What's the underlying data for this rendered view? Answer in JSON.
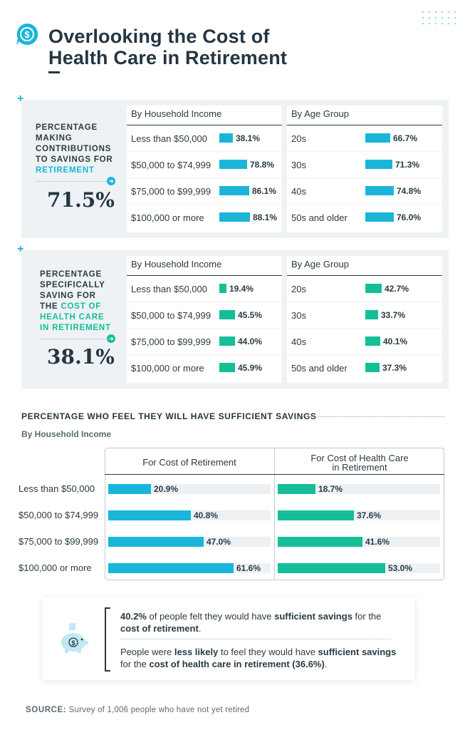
{
  "header": {
    "title_line1": "Overlooking the Cost of",
    "title_line2": "Health Care in Retirement",
    "icon": "dollar-chat-icon"
  },
  "colors": {
    "blue": "#19b6d9",
    "green": "#14be98",
    "navy": "#243642",
    "panel_bg": "#eef2f4",
    "track": "#eef1f3"
  },
  "panel1": {
    "label_lines": [
      "PERCENTAGE",
      "MAKING",
      "CONTRIBUTIONS",
      "TO SAVINGS FOR"
    ],
    "label_highlight": [
      "RETIREMENT"
    ],
    "big_value": "71.5%"
  },
  "panel2": {
    "label_lines": [
      "PERCENTAGE",
      "SPECIFICALLY",
      "SAVING FOR"
    ],
    "label_mixed_prefix": "THE ",
    "label_highlight": [
      "COST OF",
      "HEALTH CARE",
      "IN RETIREMENT"
    ],
    "big_value": "38.1%"
  },
  "subtable_headers": {
    "income": "By Household Income",
    "age": "By Age Group"
  },
  "bottom_chart": {
    "title": "PERCENTAGE WHO FEEL THEY WILL HAVE SUFFICIENT SAVINGS",
    "subtitle": "By Household Income",
    "col1": "For Cost of Retirement",
    "col2_line1": "For Cost of Health Care",
    "col2_line2": "in Retirement"
  },
  "note": {
    "p1_b1": "40.2%",
    "p1_t1": " of people felt they would have ",
    "p1_b2": "sufficient savings",
    "p1_t2": " for the ",
    "p1_b3": "cost of retirement",
    "p1_t3": ".",
    "p2_t1": "People were ",
    "p2_b1": "less likely",
    "p2_t2": " to feel they would have ",
    "p2_b2": "sufficient savings",
    "p2_t3": " for the ",
    "p2_b3": "cost of health care in retirement (36.6%)",
    "p2_t4": "."
  },
  "source": {
    "label": "SOURCE:",
    "text": " Survey of 1,006 people who have not yet retired"
  },
  "chart_data": [
    {
      "type": "bar",
      "title": "Percentage making contributions to savings for retirement",
      "overall": 71.5,
      "groups": [
        {
          "header": "By Household Income",
          "categories": [
            "Less than $50,000",
            "$50,000 to $74,999",
            "$75,000 to $99,999",
            "$100,000 or more"
          ],
          "values": [
            38.1,
            78.8,
            86.1,
            88.1
          ],
          "labels": [
            "38.1%",
            "78.8%",
            "86.1%",
            "88.1%"
          ],
          "color": "#19b6d9"
        },
        {
          "header": "By Age Group",
          "categories": [
            "20s",
            "30s",
            "40s",
            "50s and older"
          ],
          "values": [
            66.7,
            71.3,
            74.8,
            76.0
          ],
          "labels": [
            "66.7%",
            "71.3%",
            "74.8%",
            "76.0%"
          ],
          "color": "#19b6d9"
        }
      ],
      "ylim": [
        0,
        100
      ]
    },
    {
      "type": "bar",
      "title": "Percentage specifically saving for the cost of health care in retirement",
      "overall": 38.1,
      "groups": [
        {
          "header": "By Household Income",
          "categories": [
            "Less than $50,000",
            "$50,000 to $74,999",
            "$75,000 to $99,999",
            "$100,000 or more"
          ],
          "values": [
            19.4,
            45.5,
            44.0,
            45.9
          ],
          "labels": [
            "19.4%",
            "45.5%",
            "44.0%",
            "45.9%"
          ],
          "color": "#14be98"
        },
        {
          "header": "By Age Group",
          "categories": [
            "20s",
            "30s",
            "40s",
            "50s and older"
          ],
          "values": [
            42.7,
            33.7,
            40.1,
            37.3
          ],
          "labels": [
            "42.7%",
            "33.7%",
            "40.1%",
            "37.3%"
          ],
          "color": "#14be98"
        }
      ],
      "ylim": [
        0,
        100
      ]
    },
    {
      "type": "bar",
      "title": "PERCENTAGE WHO FEEL THEY WILL HAVE SUFFICIENT SAVINGS",
      "subtitle": "By Household Income",
      "categories": [
        "Less than $50,000",
        "$50,000 to $74,999",
        "$75,000 to $99,999",
        "$100,000 or more"
      ],
      "series": [
        {
          "name": "For Cost of Retirement",
          "values": [
            20.9,
            40.8,
            47.0,
            61.6
          ],
          "labels": [
            "20.9%",
            "40.8%",
            "47.0%",
            "61.6%"
          ],
          "color": "#19b6d9"
        },
        {
          "name": "For Cost of Health Care in Retirement",
          "values": [
            18.7,
            37.6,
            41.6,
            53.0
          ],
          "labels": [
            "18.7%",
            "37.6%",
            "41.6%",
            "53.0%"
          ],
          "color": "#14be98"
        }
      ],
      "ylim": [
        0,
        80
      ]
    }
  ]
}
